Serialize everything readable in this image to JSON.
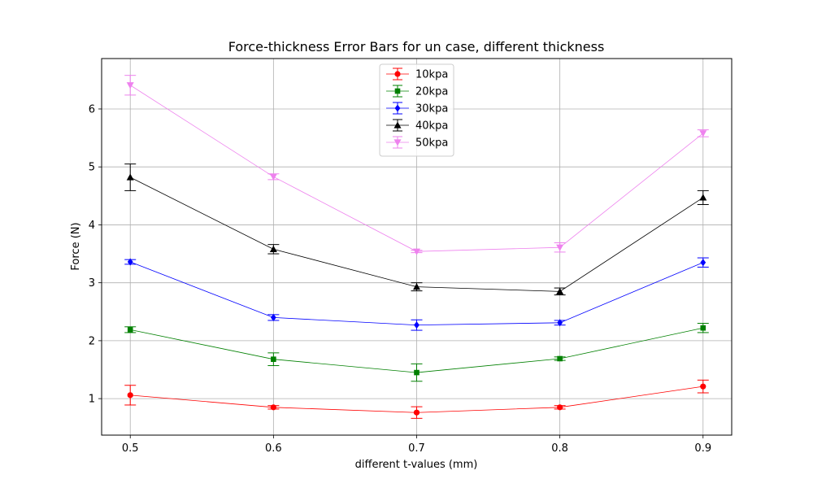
{
  "chart_data": {
    "type": "line",
    "title": "Force-thickness Error Bars for un case, different thickness",
    "xlabel": "different t-values (mm)",
    "ylabel": "Force (N)",
    "x": [
      0.5,
      0.6,
      0.7,
      0.8,
      0.9
    ],
    "x_tick_labels": [
      "0.5",
      "0.6",
      "0.7",
      "0.8",
      "0.9"
    ],
    "xlim": [
      0.48,
      0.92
    ],
    "ylim": [
      0.37,
      6.87
    ],
    "y_ticks": [
      1,
      2,
      3,
      4,
      5,
      6
    ],
    "grid": true,
    "legend_position": "top-center",
    "series": [
      {
        "name": "10kpa",
        "color": "#ff0000",
        "marker": "circle",
        "values": [
          1.06,
          0.85,
          0.76,
          0.85,
          1.21
        ],
        "errors": [
          0.17,
          0.03,
          0.1,
          0.03,
          0.11
        ]
      },
      {
        "name": "20kpa",
        "color": "#008000",
        "marker": "square",
        "values": [
          2.19,
          1.68,
          1.45,
          1.69,
          2.22
        ],
        "errors": [
          0.05,
          0.11,
          0.15,
          0.03,
          0.08
        ]
      },
      {
        "name": "30kpa",
        "color": "#0000ff",
        "marker": "diamond",
        "values": [
          3.36,
          2.4,
          2.27,
          2.31,
          3.35
        ],
        "errors": [
          0.04,
          0.05,
          0.09,
          0.04,
          0.08
        ]
      },
      {
        "name": "40kpa",
        "color": "#000000",
        "marker": "triangle-up",
        "values": [
          4.82,
          3.58,
          2.93,
          2.85,
          4.47
        ],
        "errors": [
          0.23,
          0.08,
          0.07,
          0.06,
          0.12
        ]
      },
      {
        "name": "50kpa",
        "color": "#ee82ee",
        "marker": "triangle-down",
        "values": [
          6.41,
          4.83,
          3.54,
          3.61,
          5.58
        ],
        "errors": [
          0.17,
          0.05,
          0.02,
          0.08,
          0.06
        ]
      }
    ]
  }
}
